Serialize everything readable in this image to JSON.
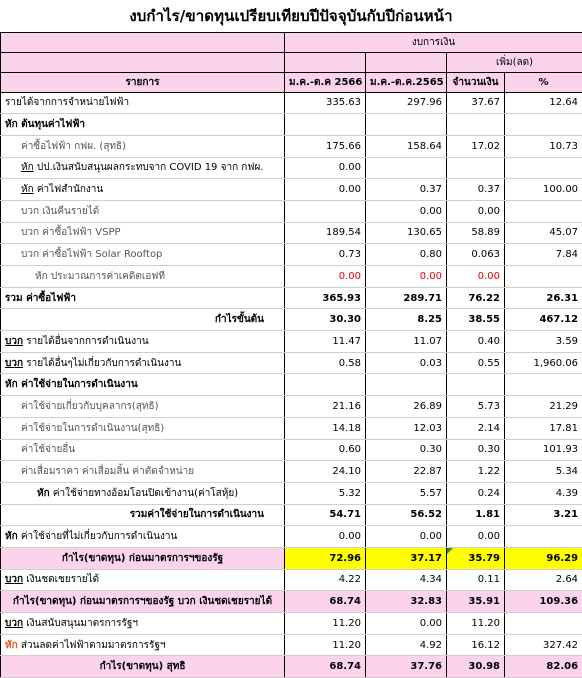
{
  "title": "งบกำไร/ขาดทุนเปรียบเทียบปีปัจจุบันกับปีก่อนหน้า",
  "header": {
    "group_amount": "งบการเงิน",
    "group_change": "เพิ่ม(ลด)",
    "col_item": "รายการ",
    "col_2566": "ม.ค.-ต.ค 2566",
    "col_2565": "ม.ค.-ต.ค.2565",
    "col_amount": "จำนวนเงิน",
    "col_pct": "%"
  },
  "rows": [
    {
      "key": "",
      "label": "รายได้จากการจำหน่ายไฟฟ้า",
      "v2566": "335.63",
      "v2565": "297.96",
      "amt": "37.67",
      "pct": "12.64"
    },
    {
      "key": "หัก",
      "label": "ต้นทุนค่าไฟฟ้า",
      "v2566": "",
      "v2565": "",
      "amt": "",
      "pct": ""
    },
    {
      "key": "",
      "label": "ค่าซื้อไฟฟ้า  กฟผ. (สุทธิ)",
      "v2566": "175.66",
      "v2565": "158.64",
      "amt": "17.02",
      "pct": "10.73"
    },
    {
      "key": "หัก",
      "label": "ปป.เงินสนับสนุนผลกระทบจาก COVID 19 จาก กฟผ.",
      "v2566": "0.00",
      "v2565": "",
      "amt": "",
      "pct": ""
    },
    {
      "key": "หัก",
      "label": "ค่าไฟสำนักงาน",
      "v2566": "0.00",
      "v2565": "0.37",
      "amt": "0.37",
      "pct": "100.00"
    },
    {
      "key": "",
      "label": "บวก เงินคืนรายได้",
      "v2566": "",
      "v2565": "0.00",
      "amt": "0.00",
      "pct": ""
    },
    {
      "key": "",
      "label": "บวก ค่าซื้อไฟฟ้า  VSPP",
      "v2566": "189.54",
      "v2565": "130.65",
      "amt": "58.89",
      "pct": "45.07"
    },
    {
      "key": "",
      "label": "บวก ค่าซื้อไฟฟ้า  Solar Rooftop",
      "v2566": "0.73",
      "v2565": "0.80",
      "amt": "0.063",
      "pct": "7.84"
    },
    {
      "key": "",
      "label": "หัก ประมาณการค่าเคดิตเอฟที",
      "v2566": "0.00",
      "v2565": "0.00",
      "amt": "0.00",
      "pct": ""
    },
    {
      "key": "รวม",
      "label": "ค่าซื้อไฟฟ้า",
      "v2566": "365.93",
      "v2565": "289.71",
      "amt": "76.22",
      "pct": "26.31"
    },
    {
      "key": "",
      "label": "กำไรขั้นต้น",
      "v2566": "30.30",
      "v2565": "8.25",
      "amt": "38.55",
      "pct": "467.12"
    },
    {
      "key": "บวก",
      "label": "รายได้อื่นจากการดำเนินงาน",
      "v2566": "11.47",
      "v2565": "11.07",
      "amt": "0.40",
      "pct": "3.59"
    },
    {
      "key": "บวก",
      "label": "รายได้อื่นๆไม่เกี่ยวกับการดำเนินงาน",
      "v2566": "0.58",
      "v2565": "0.03",
      "amt": "0.55",
      "pct": "1,960.06"
    },
    {
      "key": "หัก",
      "label": "ค่าใช้จ่ายในการดำเนินงาน",
      "v2566": "",
      "v2565": "",
      "amt": "",
      "pct": ""
    },
    {
      "key": "",
      "label": "ค่าใช้จ่ายเกี่ยวกับบุคลากร(สุทธิ)",
      "v2566": "21.16",
      "v2565": "26.89",
      "amt": "5.73",
      "pct": "21.29"
    },
    {
      "key": "",
      "label": "ค่าใช้จ่ายในการดำเนินงาน(สุทธิ)",
      "v2566": "14.18",
      "v2565": "12.03",
      "amt": "2.14",
      "pct": "17.81"
    },
    {
      "key": "",
      "label": "ค่าใช้จ่ายอื่น",
      "v2566": "0.60",
      "v2565": "0.30",
      "amt": "0.30",
      "pct": "101.93"
    },
    {
      "key": "",
      "label": "ค่าเสื่อมราคา  ค่าเสื่อมสิ้น  ค่าตัดจำหน่าย",
      "v2566": "24.10",
      "v2565": "22.87",
      "amt": "1.22",
      "pct": "5.34"
    },
    {
      "key": "หัก",
      "label": "ค่าใช้จ่ายทางอ้อมโอนปิดเข้างาน(ค่าโสหุ้ย)",
      "v2566": "5.32",
      "v2565": "5.57",
      "amt": "0.24",
      "pct": "4.39"
    },
    {
      "key": "",
      "label": "รวมค่าใช้จ่ายในการดำเนินงาน",
      "v2566": "54.71",
      "v2565": "56.52",
      "amt": "1.81",
      "pct": "3.21"
    },
    {
      "key": "หัก",
      "label": "ค่าใช้จ่ายที่ไม่เกี่ยวกับการดำเนินงาน",
      "v2566": "0.00",
      "v2565": "0.00",
      "amt": "0.00",
      "pct": ""
    },
    {
      "key": "",
      "label": "กำไร(ขาดทุน) ก่อนมาตรการฯของรัฐ",
      "v2566": "72.96",
      "v2565": "37.17",
      "amt": "35.79",
      "pct": "96.29"
    },
    {
      "key": "บวก",
      "label": "เงินชดเชยรายได้",
      "v2566": "4.22",
      "v2565": "4.34",
      "amt": "0.11",
      "pct": "2.64"
    },
    {
      "key": "",
      "label": "กำไร(ขาดทุน) ก่อนมาตรการฯของรัฐ  บวก เงินชดเชยรายได้",
      "v2566": "68.74",
      "v2565": "32.83",
      "amt": "35.91",
      "pct": "109.36"
    },
    {
      "key": "บวก",
      "label": "เงินสนับสนุนมาตรการรัฐฯ",
      "v2566": "11.20",
      "v2565": "0.00",
      "amt": "11.20",
      "pct": ""
    },
    {
      "key": "หัก",
      "label": "ส่วนลดค่าไฟฟ้าตามมาตรการรัฐฯ",
      "v2566": "11.20",
      "v2565": "4.92",
      "amt": "16.12",
      "pct": "327.42"
    },
    {
      "key": "",
      "label": "กำไร(ขาดทุน) สุทธิ",
      "v2566": "68.74",
      "v2565": "37.76",
      "amt": "30.98",
      "pct": "82.06"
    }
  ],
  "colors": {
    "highlight_pink": "#fbd3ea",
    "highlight_yellow": "#ffff00",
    "negative_red": "#e00000",
    "key_orange": "#e6561a"
  }
}
